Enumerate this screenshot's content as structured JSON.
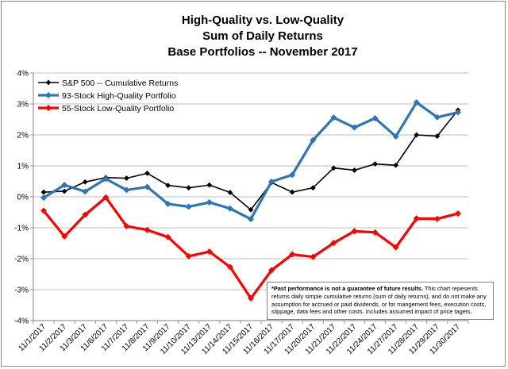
{
  "chart_data": {
    "type": "line",
    "title_lines": [
      "High-Quality vs. Low-Quality",
      "Sum of Daily Returns",
      "Base Portfolios -- November 2017"
    ],
    "categories": [
      "11/1/2017",
      "11/2/2017",
      "11/3/2017",
      "11/6/2017",
      "11/7/2017",
      "11/8/2017",
      "11/9/2017",
      "11/10/2017",
      "11/13/2017",
      "11/14/2017",
      "11/15/2017",
      "11/16/2017",
      "11/17/2017",
      "11/20/2017",
      "11/21/2017",
      "11/22/2017",
      "11/24/2017",
      "11/27/2017",
      "11/28/2017",
      "11/29/2017",
      "11/30/2017"
    ],
    "y_ticks": [
      "4%",
      "3%",
      "2%",
      "1%",
      "0%",
      "-1%",
      "-2%",
      "-3%",
      "-4%"
    ],
    "ylim": [
      -4,
      4
    ],
    "y_unit": "%",
    "grid": true,
    "legend_position": "top-left",
    "series": [
      {
        "name": "S&P 500 -- Cumulative Returns",
        "color": "#000000",
        "marker": "diamond",
        "values": [
          0.15,
          0.18,
          0.48,
          0.62,
          0.6,
          0.76,
          0.37,
          0.29,
          0.38,
          0.14,
          -0.42,
          0.46,
          0.15,
          0.29,
          0.93,
          0.86,
          1.06,
          1.02,
          2.0,
          1.96,
          2.8
        ]
      },
      {
        "name": "93-Stock High-Quality Portfolio",
        "color": "#2e75b6",
        "marker": "diamond",
        "values": [
          -0.03,
          0.38,
          0.17,
          0.58,
          0.22,
          0.32,
          -0.23,
          -0.32,
          -0.18,
          -0.38,
          -0.72,
          0.49,
          0.71,
          1.83,
          2.56,
          2.24,
          2.54,
          1.95,
          3.05,
          2.57,
          2.73
        ]
      },
      {
        "name": "55-Stock Low-Quality Portfolio",
        "color": "#ff0000",
        "marker": "diamond",
        "values": [
          -0.45,
          -1.28,
          -0.58,
          -0.02,
          -0.95,
          -1.07,
          -1.3,
          -1.92,
          -1.77,
          -2.27,
          -3.28,
          -2.37,
          -1.86,
          -1.94,
          -1.49,
          -1.11,
          -1.15,
          -1.63,
          -0.7,
          -0.71,
          -0.54
        ]
      }
    ],
    "annotation": {
      "bold": "*Past performance is not a guarantee of future results.",
      "text": " This chart repesents returns daily simple cumulative returns (sum of daily returns), and do not make any assumption for accrued or paid dividends, or for mangement fees, execution costs, slippage, data fees and other costs. Includes assumed impact of price tagets."
    }
  }
}
